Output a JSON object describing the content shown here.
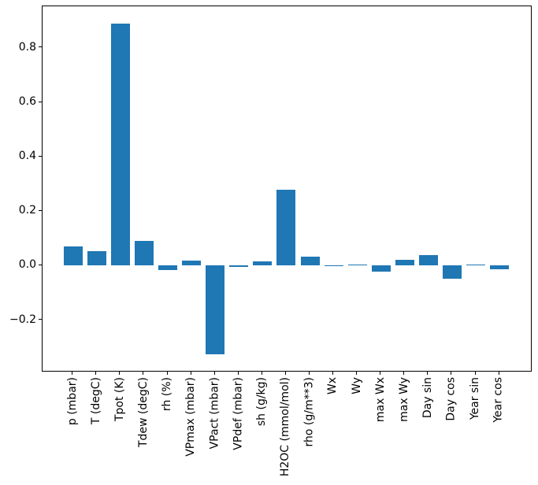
{
  "figure": {
    "background": "#ffffff",
    "text_color": "#000000",
    "spine_color": "#000000"
  },
  "chart_data": {
    "type": "bar",
    "title": "",
    "xlabel": "",
    "ylabel": "",
    "categories": [
      "p (mbar)",
      "T (degC)",
      "Tpot (K)",
      "Tdew (degC)",
      "rh (%)",
      "VPmax (mbar)",
      "VPact (mbar)",
      "VPdef (mbar)",
      "sh (g/kg)",
      "H2OC (mmol/mol)",
      "rho (g/m**3)",
      "Wx",
      "Wy",
      "max Wx",
      "max Wy",
      "Day sin",
      "Day cos",
      "Year sin",
      "Year cos"
    ],
    "values": [
      0.071,
      0.053,
      0.889,
      0.092,
      -0.015,
      0.019,
      -0.326,
      -0.004,
      0.017,
      0.279,
      0.033,
      0.001,
      0.004,
      -0.023,
      0.021,
      0.04,
      -0.049,
      0.005,
      -0.012
    ],
    "bar_color": "#1f77b4",
    "ylim": [
      -0.392,
      0.953
    ],
    "yticks": [
      -0.2,
      0.0,
      0.2,
      0.4,
      0.6,
      0.8
    ],
    "ytick_labels": [
      "−0.2",
      "0.0",
      "0.2",
      "0.4",
      "0.6",
      "0.8"
    ],
    "xtick_rotation": 90,
    "grid": false,
    "legend": null
  }
}
